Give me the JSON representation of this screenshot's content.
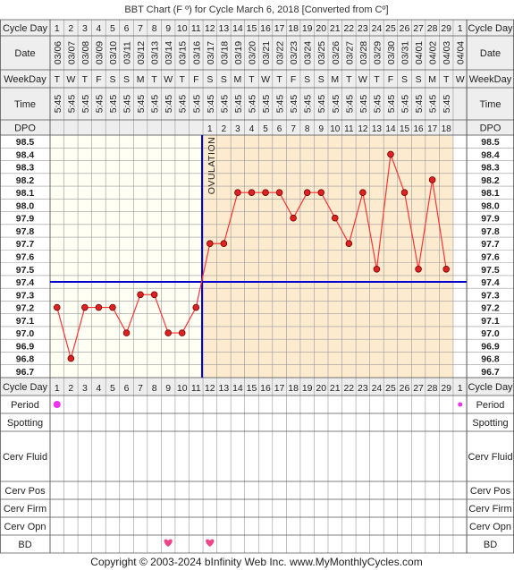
{
  "title": "BBT Chart (F º) for Cycle March 6, 2018  [Converted from Cº]",
  "footer": "Copyright © 2003-2024 bInfinity Web Inc.    www.MyMonthlyCycles.com",
  "row_labels": {
    "cycle_day": "Cycle Day",
    "date": "Date",
    "weekday": "WeekDay",
    "time": "Time",
    "dpo": "DPO",
    "period": "Period",
    "spotting": "Spotting",
    "cerv_fluid": "Cerv Fluid",
    "cerv_pos": "Cerv Pos",
    "cerv_firm": "Cerv Firm",
    "cerv_opn": "Cerv Opn",
    "bd": "BD"
  },
  "ovulation_label": "OVULATION",
  "colors": {
    "line": "#ff3333",
    "point": "#dd2222",
    "ovulation_line": "#0000cc",
    "coverline": "#0000cc",
    "luteal_bg": "#fdebd0",
    "follicular_bg": "#fffff4",
    "header_bg": "#eeeeee",
    "period_dot": "#ee33ee",
    "bd_heart": "#ee4488"
  },
  "chart_data": {
    "type": "line",
    "title": "BBT Chart (F º) for Cycle March 6, 2018  [Converted from Cº]",
    "xlabel": "Cycle Day",
    "ylabel": "",
    "cycle_days": [
      "1",
      "2",
      "3",
      "4",
      "5",
      "6",
      "7",
      "8",
      "9",
      "10",
      "11",
      "12",
      "13",
      "14",
      "15",
      "16",
      "17",
      "18",
      "19",
      "20",
      "21",
      "22",
      "23",
      "24",
      "25",
      "26",
      "27",
      "28",
      "29",
      "1"
    ],
    "dates": [
      "03/06",
      "03/07",
      "03/08",
      "03/09",
      "03/10",
      "03/11",
      "03/12",
      "03/13",
      "03/14",
      "03/15",
      "03/16",
      "03/17",
      "03/18",
      "03/19",
      "03/20",
      "03/21",
      "03/22",
      "03/23",
      "03/24",
      "03/25",
      "03/26",
      "03/27",
      "03/28",
      "03/29",
      "03/30",
      "03/31",
      "04/01",
      "04/02",
      "04/03",
      "04/04"
    ],
    "weekdays": [
      "T",
      "W",
      "T",
      "F",
      "S",
      "S",
      "M",
      "T",
      "W",
      "T",
      "F",
      "S",
      "S",
      "M",
      "T",
      "W",
      "T",
      "F",
      "S",
      "S",
      "M",
      "T",
      "W",
      "T",
      "F",
      "S",
      "S",
      "M",
      "T",
      "W"
    ],
    "times": [
      "5:45",
      "5:45",
      "5:45",
      "5:45",
      "5:45",
      "5:45",
      "5:45",
      "5:45",
      "5:45",
      "5:45",
      "5:45",
      "5:45",
      "5:45",
      "5:45",
      "5:45",
      "5:45",
      "5:45",
      "5:45",
      "5:45",
      "5:45",
      "5:45",
      "5:45",
      "5:45",
      "5:45",
      "5:45",
      "5:45",
      "5:45",
      "5:45",
      "5:45",
      ""
    ],
    "dpo": [
      "",
      "",
      "",
      "",
      "",
      "",
      "",
      "",
      "",
      "",
      "",
      "1",
      "2",
      "3",
      "4",
      "5",
      "6",
      "7",
      "8",
      "9",
      "10",
      "11",
      "12",
      "13",
      "14",
      "15",
      "16",
      "17",
      "18",
      ""
    ],
    "temperatures": [
      97.2,
      96.8,
      97.2,
      97.2,
      97.2,
      97.0,
      97.3,
      97.3,
      97.0,
      97.0,
      97.2,
      97.7,
      97.7,
      98.1,
      98.1,
      98.1,
      98.1,
      97.9,
      98.1,
      98.1,
      97.9,
      97.7,
      98.1,
      97.5,
      98.4,
      98.1,
      97.5,
      98.2,
      97.5,
      null
    ],
    "y_ticks": [
      "98.5",
      "98.4",
      "98.3",
      "98.2",
      "98.1",
      "98.0",
      "97.9",
      "97.8",
      "97.7",
      "97.6",
      "97.5",
      "97.4",
      "97.3",
      "97.2",
      "97.1",
      "97.0",
      "96.9",
      "96.8",
      "96.7"
    ],
    "ylim": [
      96.7,
      98.5
    ],
    "coverline": 97.4,
    "ovulation_day_index": 10,
    "period_days": [
      0,
      29
    ],
    "bd_days": [
      8,
      11
    ],
    "grid": true,
    "legend": "none"
  }
}
